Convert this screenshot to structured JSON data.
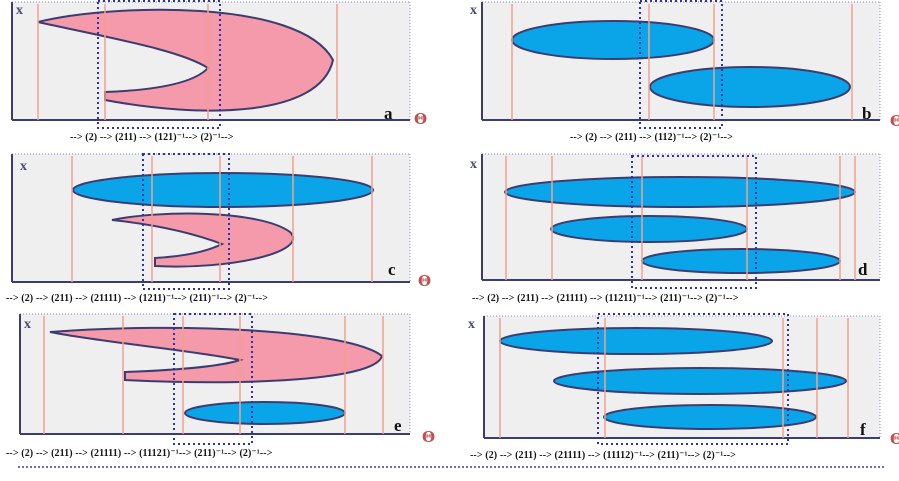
{
  "labels": {
    "x_axis": "x",
    "theta_axis": "Θ"
  },
  "colors": {
    "pink_fill": "#f49aaa",
    "blue_fill": "#0aa5e8",
    "outline": "#3c3c70",
    "vertical_line": "#f2a08e",
    "dotted_box": "#2c33a8",
    "panel_bg": "#efefef"
  },
  "panels": [
    {
      "id": "a",
      "letter": "a",
      "sequence": "--> (2) --> (211) --> (121)⁻¹--> (2)⁻¹-->"
    },
    {
      "id": "b",
      "letter": "b",
      "sequence": "--> (2) --> (211) --> (112)⁻¹--> (2)⁻¹-->"
    },
    {
      "id": "c",
      "letter": "c",
      "sequence": "--> (2) --> (211) --> (21111)  --> (1211)⁻¹--> (211)⁻¹--> (2)⁻¹-->"
    },
    {
      "id": "d",
      "letter": "d",
      "sequence": "--> (2) --> (211) --> (21111)  --> (11211)⁻¹--> (211)⁻¹--> (2)⁻¹-->"
    },
    {
      "id": "e",
      "letter": "e",
      "sequence": "--> (2) --> (211) --> (21111)  --> (11121)⁻¹--> (211)⁻¹--> (2)⁻¹-->"
    },
    {
      "id": "f",
      "letter": "f",
      "sequence": "--> (2) --> (211) --> (21111)  --> (11112)⁻¹--> (211)⁻¹--> (2)⁻¹-->"
    }
  ]
}
